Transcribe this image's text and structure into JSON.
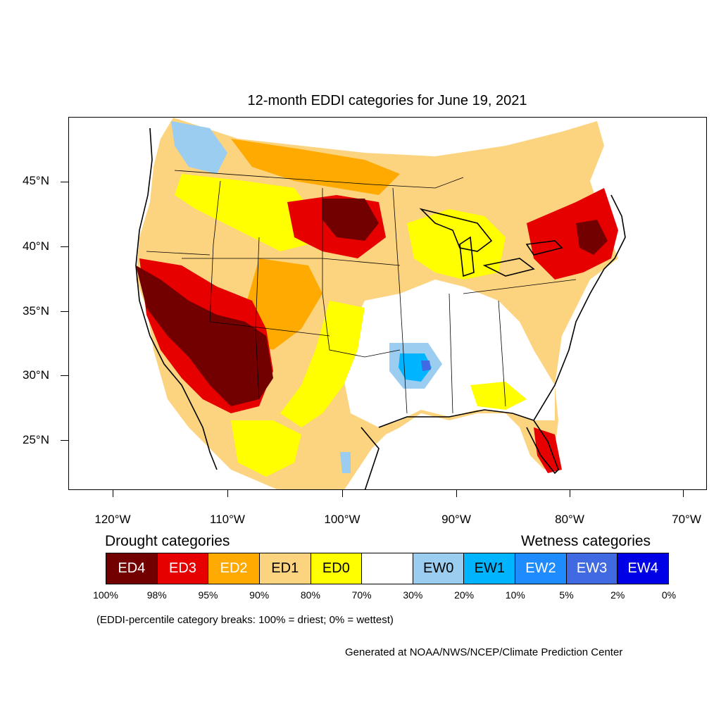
{
  "title": "12-month EDDI categories for June 19, 2021",
  "lat_labels": [
    "45°N",
    "40°N",
    "35°N",
    "30°N",
    "25°N"
  ],
  "lon_labels": [
    "120°W",
    "110°W",
    "100°W",
    "90°W",
    "80°W",
    "70°W"
  ],
  "drought_heading": "Drought categories",
  "wetness_heading": "Wetness categories",
  "legend": [
    {
      "label": "ED4",
      "color": "#730000",
      "text_color": "#ffffff"
    },
    {
      "label": "ED3",
      "color": "#e60000",
      "text_color": "#ffffff"
    },
    {
      "label": "ED2",
      "color": "#ffaa00",
      "text_color": "#ffffff"
    },
    {
      "label": "ED1",
      "color": "#fcd37f",
      "text_color": "#000000"
    },
    {
      "label": "ED0",
      "color": "#ffff00",
      "text_color": "#000000"
    },
    {
      "label": "",
      "color": "#ffffff",
      "text_color": "#000000"
    },
    {
      "label": "EW0",
      "color": "#9bcdf0",
      "text_color": "#000000"
    },
    {
      "label": "EW1",
      "color": "#00b4ff",
      "text_color": "#000000"
    },
    {
      "label": "EW2",
      "color": "#1e8cff",
      "text_color": "#ffffff"
    },
    {
      "label": "EW3",
      "color": "#4169e1",
      "text_color": "#ffffff"
    },
    {
      "label": "EW4",
      "color": "#0000e6",
      "text_color": "#ffffff"
    }
  ],
  "percentiles": [
    "100%",
    "98%",
    "95%",
    "90%",
    "80%",
    "70%",
    "30%",
    "20%",
    "10%",
    "5%",
    "2%",
    "0%"
  ],
  "note": "(EDDI-percentile category breaks: 100% = driest; 0% = wettest)",
  "credit": "Generated at NOAA/NWS/NCEP/Climate Prediction Center"
}
